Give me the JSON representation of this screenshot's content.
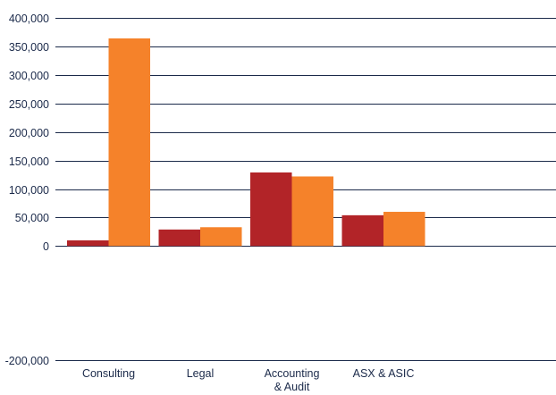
{
  "chart_data": {
    "type": "bar",
    "categories": [
      [
        "Consulting"
      ],
      [
        "Legal"
      ],
      [
        "Accounting",
        "& Audit"
      ],
      [
        "ASX & ASIC"
      ]
    ],
    "series": [
      {
        "values": [
          10000,
          29000,
          129000,
          54000
        ],
        "color": "#b22428"
      },
      {
        "values": [
          364000,
          33000,
          122000,
          60000
        ],
        "color": "#f5822a"
      }
    ],
    "ylim": [
      -200000,
      400000
    ],
    "y_ticks": [
      {
        "value": 400000,
        "label": "400,000"
      },
      {
        "value": 350000,
        "label": "350,000"
      },
      {
        "value": 300000,
        "label": "300,000"
      },
      {
        "value": 250000,
        "label": "250,000"
      },
      {
        "value": 200000,
        "label": "200,000"
      },
      {
        "value": 150000,
        "label": "150,000"
      },
      {
        "value": 100000,
        "label": "100,000"
      },
      {
        "value": 50000,
        "label": "50,000"
      },
      {
        "value": 0,
        "label": "0"
      },
      {
        "value": -200000,
        "label": "-200,000"
      }
    ],
    "grid_line_color": "#1b2a4a",
    "grid": true
  }
}
